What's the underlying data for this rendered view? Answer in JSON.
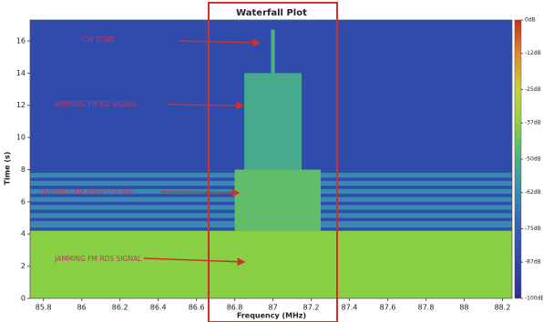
{
  "chart_data": {
    "type": "heatmap",
    "title": "Waterfall Plot",
    "x_label": "Frequency (MHz)",
    "y_label": "Time (s)",
    "xlim": [
      85.73,
      88.25
    ],
    "xticks": [
      85.8,
      86,
      86.2,
      86.4,
      86.6,
      86.8,
      87,
      87.2,
      87.4,
      87.6,
      87.8,
      88,
      88.2
    ],
    "ylim": [
      0,
      17.3
    ],
    "yticks": [
      0,
      2,
      4,
      6,
      8,
      10,
      12,
      14,
      16
    ],
    "colorbar": {
      "lim": [
        -100,
        0
      ],
      "ticks": [
        {
          "value": 0,
          "label": "0dB"
        },
        {
          "value": -12,
          "label": "-12dB"
        },
        {
          "value": -25,
          "label": "-25dB"
        },
        {
          "value": -37,
          "label": "-37dB"
        },
        {
          "value": -50,
          "label": "-50dB"
        },
        {
          "value": -62,
          "label": "-62dB"
        },
        {
          "value": -75,
          "label": "-75dB"
        },
        {
          "value": -87,
          "label": "-87dB"
        },
        {
          "value": -100,
          "label": "-100dB"
        }
      ],
      "stops": [
        [
          -100,
          "#2f2f96"
        ],
        [
          -80,
          "#2f55b4"
        ],
        [
          -60,
          "#3a8fb0"
        ],
        [
          -48,
          "#4fb77a"
        ],
        [
          -37,
          "#8fd13f"
        ],
        [
          -25,
          "#c9d23a"
        ],
        [
          -12,
          "#e0892a"
        ],
        [
          0,
          "#c62f1e"
        ]
      ]
    },
    "regions": [
      {
        "xlim": [
          85.73,
          88.25
        ],
        "ylim": [
          0,
          17.3
        ],
        "value": -85
      },
      {
        "xlim": [
          85.73,
          88.25
        ],
        "ylim": [
          0,
          4.2
        ],
        "value": -38
      },
      {
        "xlim": [
          85.73,
          88.25
        ],
        "ylim": [
          4.4,
          4.8
        ],
        "value": -62
      },
      {
        "xlim": [
          85.73,
          88.25
        ],
        "ylim": [
          5.0,
          5.3
        ],
        "value": -62
      },
      {
        "xlim": [
          85.73,
          88.25
        ],
        "ylim": [
          5.5,
          5.8
        ],
        "value": -62
      },
      {
        "xlim": [
          85.73,
          88.25
        ],
        "ylim": [
          6.0,
          6.3
        ],
        "value": -62
      },
      {
        "xlim": [
          85.73,
          88.25
        ],
        "ylim": [
          6.5,
          6.8
        ],
        "value": -62
      },
      {
        "xlim": [
          85.73,
          88.25
        ],
        "ylim": [
          7.0,
          7.3
        ],
        "value": -62
      },
      {
        "xlim": [
          85.73,
          88.25
        ],
        "ylim": [
          7.5,
          7.8
        ],
        "value": -62
      },
      {
        "xlim": [
          86.8,
          87.25
        ],
        "ylim": [
          4.2,
          8
        ],
        "value": -45
      },
      {
        "xlim": [
          86.85,
          87.15
        ],
        "ylim": [
          8,
          14
        ],
        "value": -52
      },
      {
        "xlim": [
          86.99,
          87.01
        ],
        "ylim": [
          14,
          16.7
        ],
        "value": -50
      }
    ],
    "annotations": [
      "CW TONE",
      "JAMMING FM NO SIGNAL",
      "JAMMING FM AUDIO SIGNAL",
      "JAMMING FM RDS SIGNAL"
    ]
  }
}
